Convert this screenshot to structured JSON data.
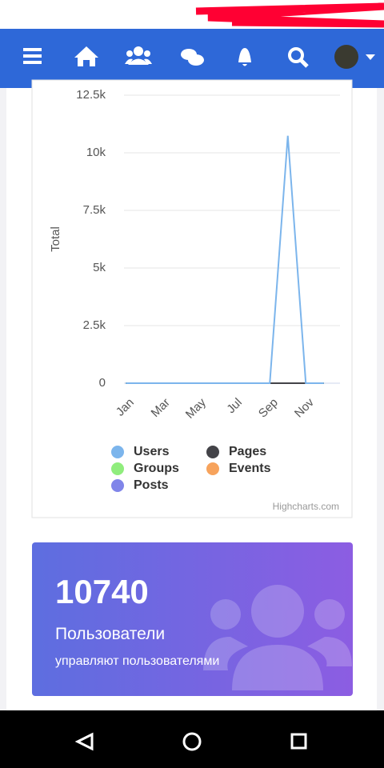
{
  "chart_data": {
    "type": "line",
    "y_axis_title": "Total",
    "credits": "Highcharts.com",
    "categories": [
      "Jan",
      null,
      "Mar",
      null,
      "May",
      null,
      "Jul",
      null,
      "Sep",
      null,
      "Nov",
      null
    ],
    "series": [
      {
        "name": "Users",
        "color": "#7cb5ec",
        "values": [
          0,
          0,
          0,
          0,
          0,
          0,
          0,
          0,
          0,
          10740,
          0,
          0
        ]
      },
      {
        "name": "Pages",
        "color": "#434348",
        "values": [
          0,
          0,
          0,
          0,
          0,
          0,
          0,
          0,
          0,
          0,
          0,
          0
        ]
      },
      {
        "name": "Groups",
        "color": "#90ed7d",
        "values": [
          0,
          0,
          0,
          0,
          0,
          0,
          0,
          0,
          0,
          0,
          0,
          0
        ]
      },
      {
        "name": "Events",
        "color": "#f7a35c",
        "values": [
          0,
          0,
          0,
          0,
          0,
          0,
          0,
          0,
          0,
          0,
          0,
          0
        ]
      },
      {
        "name": "Posts",
        "color": "#8085e9",
        "values": [
          0,
          0,
          0,
          0,
          0,
          0,
          0,
          0,
          0,
          0,
          0,
          0
        ]
      }
    ],
    "ylim": [
      0,
      12500
    ],
    "yticks": [
      0,
      {
        "value": 2500,
        "label": "2.5k"
      },
      {
        "value": 5000,
        "label": "5k"
      },
      {
        "value": 7500,
        "label": "7.5k"
      },
      {
        "value": 10000,
        "label": "10k"
      },
      {
        "value": 12500,
        "label": "12.5k"
      }
    ],
    "grid": true
  },
  "card": {
    "count": 10740,
    "title": "Пользователи",
    "subtitle": "управляют пользователями"
  }
}
